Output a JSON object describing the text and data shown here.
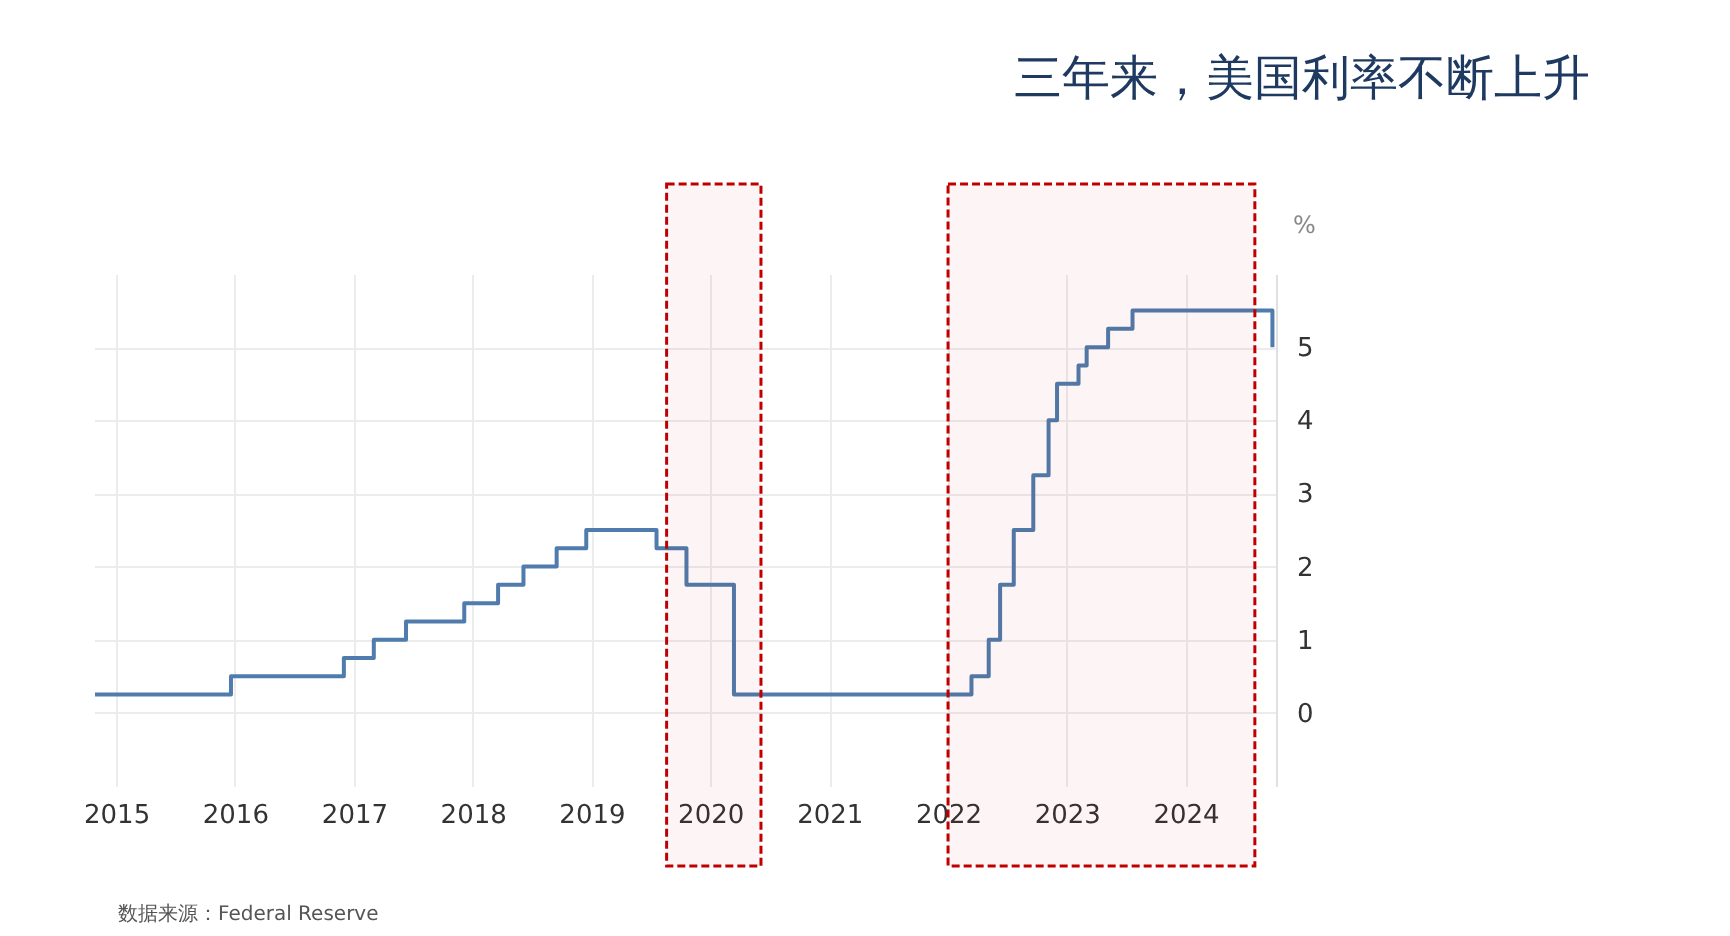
{
  "chart_data": {
    "type": "step",
    "title": "三年来，美国利率不断上升",
    "ylabel": "%",
    "annotations": [
      "数据来源：Federal Reserve"
    ],
    "x": [
      "2014-10-28",
      "2015-11-28",
      "2015-12-20",
      "2016-11-06",
      "2016-12-01",
      "2017-02-06",
      "2017-03-03",
      "2017-05-12",
      "2017-06-10",
      "2017-11-10",
      "2017-12-06",
      "2018-03-03",
      "2018-03-20",
      "2018-05-08",
      "2018-06-06",
      "2018-08-10",
      "2018-09-16",
      "2018-11-10",
      "2018-12-16",
      "2019-06-20",
      "2019-07-20",
      "2019-08-15",
      "2019-10-20",
      "2020-02-28",
      "2020-03-14",
      "2022-02-28",
      "2022-03-14",
      "2022-04-22",
      "2022-05-06",
      "2022-06-10",
      "2022-07-22",
      "2022-08-26",
      "2022-09-20",
      "2022-10-26",
      "2022-11-06",
      "2022-12-02",
      "2023-01-26",
      "2023-02-06",
      "2023-03-03",
      "2023-04-30",
      "2023-05-08",
      "2023-06-20",
      "2023-07-22",
      "2024-09-01",
      "2024-09-24"
    ],
    "series": [
      {
        "color": "#4f7cac",
        "values": [
          0.25,
          0.25,
          0.5,
          0.5,
          0.75,
          0.75,
          1.0,
          1.0,
          1.25,
          1.25,
          1.5,
          1.5,
          1.75,
          1.75,
          2.0,
          2.0,
          2.25,
          2.25,
          2.5,
          2.5,
          2.25,
          2.25,
          1.75,
          1.75,
          0.25,
          0.25,
          0.5,
          0.5,
          1.0,
          1.75,
          2.5,
          2.5,
          3.25,
          3.25,
          4.0,
          4.5,
          4.5,
          4.75,
          5.0,
          5.0,
          5.25,
          5.25,
          5.5,
          5.5,
          5.0
        ]
      }
    ],
    "xlim": [
      "2014-10-25",
      "2024-10-05"
    ],
    "xticks": [
      {
        "value": "2015",
        "label": "2015"
      },
      {
        "value": "2016",
        "label": "2016"
      },
      {
        "value": "2017",
        "label": "2017"
      },
      {
        "value": "2018",
        "label": "2018"
      },
      {
        "value": "2019",
        "label": "2019"
      },
      {
        "value": "2020",
        "label": "2020"
      },
      {
        "value": "2021",
        "label": "2021"
      },
      {
        "value": "2022",
        "label": "2022"
      },
      {
        "value": "2023",
        "label": "2023"
      },
      {
        "value": "2024",
        "label": "2024"
      }
    ],
    "ylim": [
      -1,
      6
    ],
    "yticks": [
      0,
      1,
      2,
      3,
      4,
      5
    ],
    "bands": [
      {
        "axis": "x",
        "from": "2019-08-20",
        "to": "2020-06-05",
        "color": "#c00000"
      },
      {
        "axis": "x",
        "from": "2022-01-01",
        "to": "2024-08-01",
        "color": "#c00000"
      }
    ],
    "grid": true,
    "marker": "none",
    "line_style": "solid"
  }
}
